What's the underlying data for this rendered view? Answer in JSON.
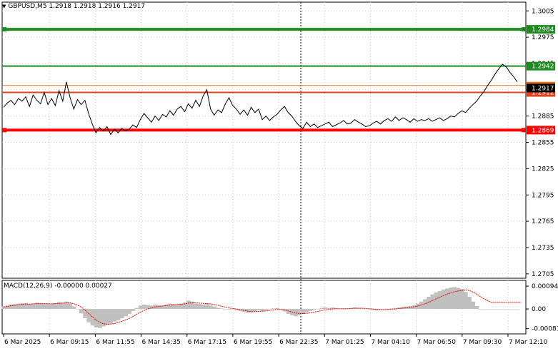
{
  "header": {
    "symbol": "GBPUSD,M5",
    "open": "1.2918",
    "high": "1.2918",
    "low": "1.2916",
    "close": "1.2917"
  },
  "price_axis": {
    "ticks": [
      "1.3005",
      "1.2975",
      "1.2945",
      "1.2915",
      "1.2885",
      "1.2855",
      "1.2825",
      "1.2795",
      "1.2765",
      "1.2735",
      "1.2705"
    ],
    "range": [
      1.27,
      1.3015
    ]
  },
  "levels": [
    {
      "label": "1.2984",
      "value": 1.2984,
      "color": "#1f8a1f",
      "thick": true
    },
    {
      "label": "1.2942",
      "value": 1.2942,
      "color": "#1f8a1f",
      "thick": false
    },
    {
      "label": "1.2912",
      "value": 1.2912,
      "color": "#e0401f",
      "thick": false
    },
    {
      "label": "1.2869",
      "value": 1.2869,
      "color": "#ff0000",
      "thick": true
    }
  ],
  "orange_level": {
    "value": 1.292,
    "color": "#e07020"
  },
  "current_price": {
    "label": "1.2917",
    "value": 1.2917
  },
  "time_axis": {
    "labels": [
      "6 Mar 2025",
      "6 Mar 09:15",
      "6 Mar 11:55",
      "6 Mar 14:35",
      "6 Mar 17:15",
      "6 Mar 19:55",
      "6 Mar 22:35",
      "7 Mar 01:25",
      "7 Mar 04:10",
      "7 Mar 06:50",
      "7 Mar 09:30",
      "7 Mar 12:10"
    ]
  },
  "macd": {
    "title": "MACD(12,26,9) -0.00000 0.00027",
    "ticks": [
      "0.00094",
      "0.00",
      "-0.00081"
    ],
    "range": [
      -0.00085,
      0.001
    ]
  },
  "chart_data": [
    {
      "type": "line",
      "title": "GBPUSD,M5",
      "xlabel": "",
      "ylabel": "",
      "ylim": [
        1.27,
        1.3015
      ],
      "x_count": 140,
      "series": [
        {
          "name": "",
          "values": [
            1.2895,
            1.29,
            1.2903,
            1.2898,
            1.2905,
            1.2902,
            1.2907,
            1.2896,
            1.2909,
            1.2903,
            1.2899,
            1.2912,
            1.2898,
            1.2905,
            1.2897,
            1.2914,
            1.2902,
            1.2924,
            1.2906,
            1.2893,
            1.2904,
            1.2898,
            1.2903,
            1.2888,
            1.2876,
            1.2866,
            1.2872,
            1.2868,
            1.2873,
            1.2864,
            1.287,
            1.2866,
            1.2871,
            1.2868,
            1.287,
            1.2875,
            1.2872,
            1.2881,
            1.2888,
            1.2883,
            1.2878,
            1.2885,
            1.288,
            1.2887,
            1.2884,
            1.2891,
            1.2886,
            1.2893,
            1.2896,
            1.289,
            1.2899,
            1.2894,
            1.2903,
            1.2896,
            1.2908,
            1.2915,
            1.2893,
            1.2886,
            1.2892,
            1.2889,
            1.2899,
            1.2906,
            1.2897,
            1.2893,
            1.2887,
            1.2892,
            1.2886,
            1.2895,
            1.2889,
            1.2893,
            1.2881,
            1.2885,
            1.288,
            1.2884,
            1.2887,
            1.2892,
            1.2896,
            1.2889,
            1.2885,
            1.2879,
            1.2874,
            1.2871,
            1.2878,
            1.2873,
            1.2876,
            1.2872,
            1.2874,
            1.2876,
            1.2878,
            1.2873,
            1.2875,
            1.2877,
            1.288,
            1.2876,
            1.2877,
            1.2881,
            1.2878,
            1.2876,
            1.2873,
            1.2874,
            1.2877,
            1.2879,
            1.2876,
            1.288,
            1.2882,
            1.2879,
            1.2884,
            1.288,
            1.2883,
            1.2881,
            1.2878,
            1.2882,
            1.2879,
            1.2881,
            1.288,
            1.2882,
            1.2879,
            1.2881,
            1.2883,
            1.288,
            1.2882,
            1.2885,
            1.2884,
            1.2888,
            1.2891,
            1.2889,
            1.2894,
            1.2898,
            1.2902,
            1.2908,
            1.2913,
            1.292,
            1.2926,
            1.2933,
            1.2939,
            1.2944,
            1.2941,
            1.2935,
            1.293,
            1.2924
          ]
        }
      ]
    },
    {
      "type": "bar",
      "title": "MACD(12,26,9)",
      "xlabel": "",
      "ylabel": "",
      "ylim": [
        -0.00085,
        0.001
      ],
      "x_count": 140,
      "series": [
        {
          "name": "MACD",
          "values": [
            0.0001,
            0.00014,
            0.00018,
            0.0002,
            0.00022,
            0.00024,
            0.00024,
            0.0002,
            0.00022,
            0.00026,
            0.00024,
            0.0002,
            0.00022,
            0.0002,
            0.00024,
            0.00028,
            0.00026,
            0.0003,
            0.00024,
            0.0001,
            0.0,
            -0.00018,
            -0.00038,
            -0.00055,
            -0.00068,
            -0.00076,
            -0.00078,
            -0.00072,
            -0.00066,
            -0.0006,
            -0.00052,
            -0.00046,
            -0.00038,
            -0.0003,
            -0.0002,
            -8e-05,
            4e-05,
            0.00014,
            0.00018,
            0.00016,
            0.00014,
            0.00018,
            0.00016,
            0.00014,
            0.00018,
            0.00022,
            0.0002,
            0.00018,
            0.00022,
            0.00026,
            0.00034,
            0.0003,
            0.00022,
            0.0002,
            0.00018,
            0.0002,
            0.00014,
            0.0001,
            4e-05,
            2e-05,
            0.0,
            -2e-05,
            0.0,
            -4e-05,
            -8e-05,
            -0.00012,
            -0.00016,
            -0.00014,
            -0.0001,
            -6e-05,
            -8e-05,
            -4e-05,
            0.0,
            2e-05,
            4e-05,
            -2e-05,
            -0.0001,
            -0.0002,
            -0.00026,
            -0.0003,
            -0.00026,
            -0.0002,
            -0.00014,
            -8e-05,
            -4e-05,
            0.0,
            4e-05,
            6e-05,
            4e-05,
            6e-05,
            4e-05,
            2e-05,
            0.0,
            2e-05,
            4e-05,
            6e-05,
            4e-05,
            2e-05,
            0.0,
            -2e-05,
            -4e-05,
            -6e-05,
            -4e-05,
            -2e-05,
            0.0,
            2e-05,
            4e-05,
            6e-05,
            8e-05,
            0.0001,
            0.00012,
            0.00016,
            0.00022,
            0.0003,
            0.0004,
            0.0005,
            0.0006,
            0.00068,
            0.00074,
            0.0008,
            0.00084,
            0.00088,
            0.0009,
            0.00086,
            0.00082,
            0.0007,
            0.0005,
            0.0003,
            0.00012,
            0.0,
            0.0,
            0.0,
            0.0,
            0.0,
            0.0,
            0.0,
            0.0,
            0.0,
            0.0,
            0.0
          ]
        },
        {
          "name": "Signal",
          "values": [
            8e-05,
            0.0001,
            0.00013,
            0.00015,
            0.00017,
            0.00019,
            0.0002,
            0.0002,
            0.00021,
            0.00022,
            0.00022,
            0.00022,
            0.00022,
            0.00021,
            0.00022,
            0.00023,
            0.00024,
            0.00025,
            0.00025,
            0.00022,
            0.00016,
            8e-05,
            -4e-05,
            -0.00018,
            -0.00032,
            -0.00045,
            -0.00055,
            -0.00061,
            -0.00063,
            -0.00062,
            -0.0006,
            -0.00056,
            -0.00051,
            -0.00045,
            -0.00039,
            -0.00031,
            -0.00022,
            -0.00014,
            -6e-05,
            0.0,
            4e-05,
            8e-05,
            0.0001,
            0.00012,
            0.00014,
            0.00016,
            0.00017,
            0.00018,
            0.00019,
            0.00021,
            0.00024,
            0.00025,
            0.00025,
            0.00024,
            0.00023,
            0.00022,
            0.00021,
            0.00018,
            0.00015,
            0.00011,
            8e-05,
            4e-05,
            2e-05,
            0.0,
            -3e-05,
            -6e-05,
            -9e-05,
            -0.00011,
            -0.00011,
            -0.0001,
            -9e-05,
            -8e-05,
            -6e-05,
            -4e-05,
            -2e-05,
            -2e-05,
            -4e-05,
            -8e-05,
            -0.00012,
            -0.00016,
            -0.00019,
            -0.00019,
            -0.00018,
            -0.00016,
            -0.00013,
            -0.0001,
            -7e-05,
            -4e-05,
            -2e-05,
            0.0,
            1e-05,
            1e-05,
            1e-05,
            1e-05,
            2e-05,
            3e-05,
            3e-05,
            3e-05,
            2e-05,
            1e-05,
            0.0,
            -2e-05,
            -3e-05,
            -3e-05,
            -2e-05,
            -1e-05,
            0.0,
            2e-05,
            3e-05,
            5e-05,
            7e-05,
            9e-05,
            0.00012,
            0.00016,
            0.00021,
            0.00027,
            0.00034,
            0.00041,
            0.00048,
            0.00055,
            0.00061,
            0.00066,
            0.00071,
            0.00074,
            0.00076,
            0.00078,
            0.00076,
            0.0007,
            0.00061,
            0.00051,
            0.00042,
            0.00034,
            0.00027,
            0.00027,
            0.00027,
            0.00027,
            0.00027,
            0.00027,
            0.00027,
            0.00027,
            0.00027
          ]
        }
      ]
    }
  ]
}
